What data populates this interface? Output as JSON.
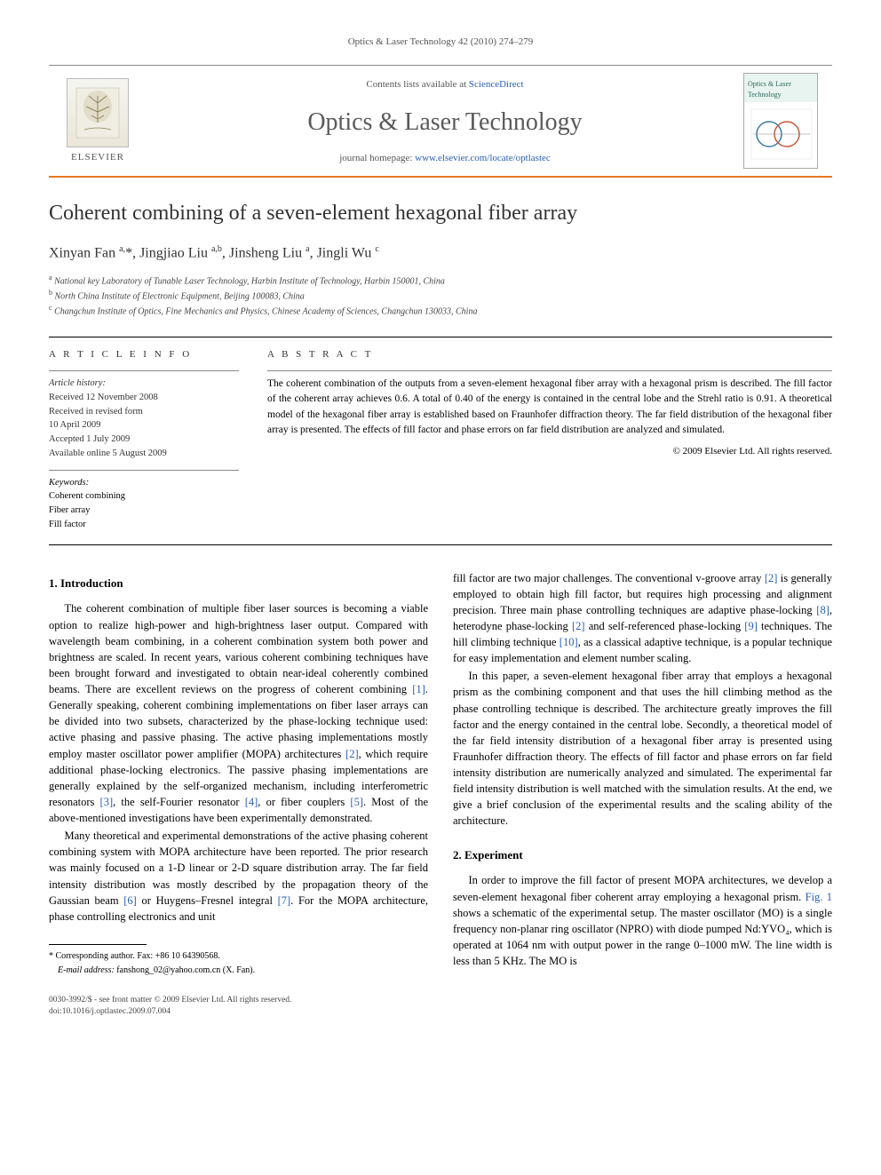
{
  "running_header": "Optics & Laser Technology 42 (2010) 274–279",
  "masthead": {
    "elsevier": "ELSEVIER",
    "contents_prefix": "Contents lists available at ",
    "contents_link": "ScienceDirect",
    "journal_name": "Optics & Laser Technology",
    "homepage_prefix": "journal homepage: ",
    "homepage_link": "www.elsevier.com/locate/optlastec",
    "cover_title": "Optics & Laser Technology"
  },
  "title": "Coherent combining of a seven-element hexagonal fiber array",
  "authors_html": "Xinyan Fan <sup>a,</sup>*, Jingjiao Liu <sup>a,b</sup>, Jinsheng Liu <sup>a</sup>, Jingli Wu <sup>c</sup>",
  "affiliations": {
    "a": "National key Laboratory of Tunable Laser Technology, Harbin Institute of Technology, Harbin 150001, China",
    "b": "North China Institute of Electronic Equipment, Beijing 100083, China",
    "c": "Changchun Institute of Optics, Fine Mechanics and Physics, Chinese Academy of Sciences, Changchun 130033, China"
  },
  "article_info": {
    "heading": "A R T I C L E   I N F O",
    "history_label": "Article history:",
    "history": [
      "Received 12 November 2008",
      "Received in revised form",
      "10 April 2009",
      "Accepted 1 July 2009",
      "Available online 5 August 2009"
    ],
    "keywords_label": "Keywords:",
    "keywords": [
      "Coherent combining",
      "Fiber array",
      "Fill factor"
    ]
  },
  "abstract": {
    "heading": "A B S T R A C T",
    "text": "The coherent combination of the outputs from a seven-element hexagonal fiber array with a hexagonal prism is described. The fill factor of the coherent array achieves 0.6. A total of 0.40 of the energy is contained in the central lobe and the Strehl ratio is 0.91. A theoretical model of the hexagonal fiber array is established based on Fraunhofer diffraction theory. The far field distribution of the hexagonal fiber array is presented. The effects of fill factor and phase errors on far field distribution are analyzed and simulated.",
    "copyright": "© 2009 Elsevier Ltd. All rights reserved."
  },
  "sections": {
    "intro_heading": "1.  Introduction",
    "intro_p1": "The coherent combination of multiple fiber laser sources is becoming a viable option to realize high-power and high-brightness laser output. Compared with wavelength beam combining, in a coherent combination system both power and brightness are scaled. In recent years, various coherent combining techniques have been brought forward and investigated to obtain near-ideal coherently combined beams. There are excellent reviews on the progress of coherent combining [1]. Generally speaking, coherent combining implementations on fiber laser arrays can be divided into two subsets, characterized by the phase-locking technique used: active phasing and passive phasing. The active phasing implementations mostly employ master oscillator power amplifier (MOPA) architectures [2], which require additional phase-locking electronics. The passive phasing implementations are generally explained by the self-organized mechanism, including interferometric resonators [3], the self-Fourier resonator [4], or fiber couplers [5]. Most of the above-mentioned investigations have been experimentally demonstrated.",
    "intro_p2": "Many theoretical and experimental demonstrations of the active phasing coherent combining system with MOPA architecture have been reported. The prior research was mainly focused on a 1-D linear or 2-D square distribution array. The far field intensity distribution was mostly described by the propagation theory of the Gaussian beam [6] or Huygens–Fresnel integral [7]. For the MOPA architecture, phase controlling electronics and unit",
    "intro_p3": "fill factor are two major challenges. The conventional v-groove array [2] is generally employed to obtain high fill factor, but requires high processing and alignment precision. Three main phase controlling techniques are adaptive phase-locking [8], heterodyne phase-locking [2] and self-referenced phase-locking [9] techniques. The hill climbing technique [10], as a classical adaptive technique, is a popular technique for easy implementation and element number scaling.",
    "intro_p4": "In this paper, a seven-element hexagonal fiber array that employs a hexagonal prism as the combining component and that uses the hill climbing method as the phase controlling technique is described. The architecture greatly improves the fill factor and the energy contained in the central lobe. Secondly, a theoretical model of the far field intensity distribution of a hexagonal fiber array is presented using Fraunhofer diffraction theory. The effects of fill factor and phase errors on far field intensity distribution are numerically analyzed and simulated. The experimental far field intensity distribution is well matched with the simulation results. At the end, we give a brief conclusion of the experimental results and the scaling ability of the architecture.",
    "exp_heading": "2.  Experiment",
    "exp_p1": "In order to improve the fill factor of present MOPA architectures, we develop a seven-element hexagonal fiber coherent array employing a hexagonal prism. Fig. 1 shows a schematic of the experimental setup. The master oscillator (MO) is a single frequency non-planar ring oscillator (NPRO) with diode pumped Nd:YVO₄, which is operated at 1064 nm with output power in the range 0–1000 mW. The line width is less than 5 KHz. The MO is"
  },
  "footnotes": {
    "corr": "* Corresponding author. Fax: +86 10 64390568.",
    "email_label": "E-mail address:",
    "email": "fanshong_02@yahoo.com.cn (X. Fan)."
  },
  "bottom": {
    "line1": "0030-3992/$ - see front matter © 2009 Elsevier Ltd. All rights reserved.",
    "line2": "doi:10.1016/j.optlastec.2009.07.004"
  },
  "colors": {
    "accent_orange": "#e87722",
    "link_blue": "#2a5db0",
    "gray_text": "#5a5a5a"
  }
}
